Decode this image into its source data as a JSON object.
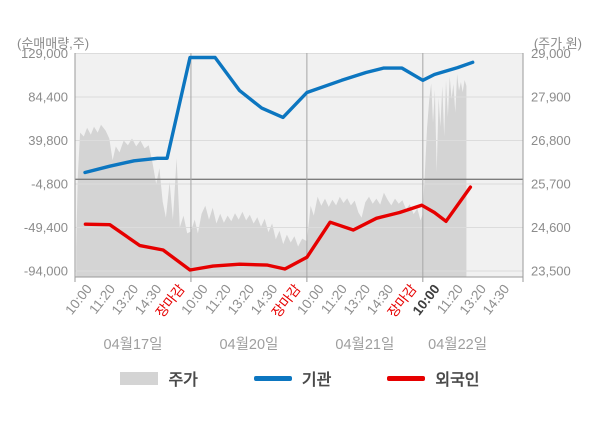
{
  "chart_data": {
    "type": "combo",
    "title": "",
    "left_axis": {
      "label": "(순매매량,주)",
      "ticks": [
        129000,
        84400,
        39800,
        -4800,
        -49400,
        -94000
      ],
      "range": [
        129000,
        -94000
      ],
      "zero_line": true
    },
    "right_axis": {
      "label": "(주가,원)",
      "ticks": [
        29000,
        27900,
        26800,
        25700,
        24600,
        23500
      ],
      "range": [
        29000,
        23500
      ]
    },
    "x_axis": {
      "days": [
        {
          "date": "04월17일",
          "times": [
            "10:00",
            "11:20",
            "13:20",
            "14:30",
            "장마감"
          ]
        },
        {
          "date": "04월20일",
          "times": [
            "10:00",
            "11:20",
            "13:20",
            "14:30",
            "장마감"
          ]
        },
        {
          "date": "04월21일",
          "times": [
            "10:00",
            "11:20",
            "13:20",
            "14:30",
            "장마감"
          ]
        },
        {
          "date": "04월22일",
          "times": [
            "10:00",
            "11:20",
            "13:20",
            "14:30"
          ]
        }
      ],
      "close_label": "장마감",
      "close_label_color": "#e60000",
      "emphasized_tick": {
        "day_index": 3,
        "time_index": 0,
        "color": "#3d3d3d"
      },
      "tick_label_color": "#8f8f8f",
      "date_label_color": "#9e9e9e",
      "grid_between_days": true
    },
    "series": [
      {
        "name": "주가",
        "type": "area",
        "axis": "right",
        "color": "#d4d4d4",
        "points": [
          [
            0.05,
            24100
          ],
          [
            0.12,
            25900
          ],
          [
            0.22,
            27000
          ],
          [
            0.38,
            26900
          ],
          [
            0.52,
            27120
          ],
          [
            0.68,
            26950
          ],
          [
            0.82,
            27150
          ],
          [
            0.98,
            27000
          ],
          [
            1.12,
            27200
          ],
          [
            1.32,
            27050
          ],
          [
            1.48,
            26850
          ],
          [
            1.62,
            26300
          ],
          [
            1.76,
            26650
          ],
          [
            1.92,
            26500
          ],
          [
            2.1,
            26800
          ],
          [
            2.28,
            26680
          ],
          [
            2.46,
            26850
          ],
          [
            2.64,
            26650
          ],
          [
            2.82,
            26800
          ],
          [
            3.0,
            26600
          ],
          [
            3.18,
            26680
          ],
          [
            3.34,
            26250
          ],
          [
            3.5,
            25700
          ],
          [
            3.64,
            26100
          ],
          [
            3.78,
            25250
          ],
          [
            3.92,
            24850
          ],
          [
            4.08,
            25750
          ],
          [
            4.22,
            24800
          ],
          [
            4.38,
            26350
          ],
          [
            4.52,
            24600
          ],
          [
            4.68,
            24900
          ],
          [
            4.84,
            24450
          ],
          [
            5.0,
            24500
          ],
          [
            5.16,
            24800
          ],
          [
            5.3,
            24450
          ],
          [
            5.46,
            24950
          ],
          [
            5.62,
            25150
          ],
          [
            5.78,
            24800
          ],
          [
            5.94,
            25100
          ],
          [
            6.1,
            24700
          ],
          [
            6.26,
            24950
          ],
          [
            6.42,
            24720
          ],
          [
            6.58,
            24900
          ],
          [
            6.74,
            24760
          ],
          [
            6.9,
            24960
          ],
          [
            7.06,
            24800
          ],
          [
            7.22,
            25000
          ],
          [
            7.38,
            24780
          ],
          [
            7.54,
            24920
          ],
          [
            7.7,
            24700
          ],
          [
            7.86,
            24860
          ],
          [
            8.02,
            24620
          ],
          [
            8.18,
            24820
          ],
          [
            8.34,
            24480
          ],
          [
            8.5,
            24700
          ],
          [
            8.66,
            24300
          ],
          [
            8.82,
            24520
          ],
          [
            8.98,
            24180
          ],
          [
            9.14,
            24420
          ],
          [
            9.3,
            24220
          ],
          [
            9.46,
            24380
          ],
          [
            9.62,
            24120
          ],
          [
            9.8,
            24320
          ],
          [
            10.0,
            24250
          ],
          [
            10.16,
            25150
          ],
          [
            10.3,
            24900
          ],
          [
            10.46,
            25380
          ],
          [
            10.62,
            25150
          ],
          [
            10.78,
            25330
          ],
          [
            10.94,
            25120
          ],
          [
            11.1,
            25300
          ],
          [
            11.26,
            25160
          ],
          [
            11.42,
            25380
          ],
          [
            11.58,
            25220
          ],
          [
            11.74,
            25340
          ],
          [
            11.9,
            25160
          ],
          [
            12.06,
            25280
          ],
          [
            12.22,
            24980
          ],
          [
            12.36,
            24850
          ],
          [
            12.52,
            25240
          ],
          [
            12.68,
            25380
          ],
          [
            12.84,
            25200
          ],
          [
            13.0,
            25330
          ],
          [
            13.16,
            25180
          ],
          [
            13.32,
            25480
          ],
          [
            13.48,
            25300
          ],
          [
            13.64,
            25160
          ],
          [
            13.8,
            25330
          ],
          [
            13.96,
            25200
          ],
          [
            14.12,
            25290
          ],
          [
            14.28,
            25060
          ],
          [
            14.44,
            25190
          ],
          [
            14.6,
            24940
          ],
          [
            14.76,
            25080
          ],
          [
            14.9,
            24780
          ],
          [
            15.0,
            24950
          ],
          [
            15.08,
            25900
          ],
          [
            15.18,
            27100
          ],
          [
            15.28,
            27850
          ],
          [
            15.36,
            28250
          ],
          [
            15.44,
            27250
          ],
          [
            15.52,
            28080
          ],
          [
            15.6,
            26000
          ],
          [
            15.68,
            27880
          ],
          [
            15.76,
            27150
          ],
          [
            15.84,
            28180
          ],
          [
            15.92,
            26900
          ],
          [
            16.0,
            28320
          ],
          [
            16.08,
            27400
          ],
          [
            16.16,
            28420
          ],
          [
            16.24,
            27850
          ],
          [
            16.32,
            28230
          ],
          [
            16.4,
            27500
          ],
          [
            16.48,
            28480
          ],
          [
            16.56,
            28060
          ],
          [
            16.64,
            28280
          ],
          [
            16.72,
            28020
          ],
          [
            16.8,
            28330
          ],
          [
            16.88,
            28180
          ]
        ]
      },
      {
        "name": "기관",
        "type": "line",
        "axis": "left",
        "color": "#0c76c0",
        "points": [
          [
            0.43,
            7000
          ],
          [
            1.5,
            13500
          ],
          [
            2.55,
            19000
          ],
          [
            3.55,
            21500
          ],
          [
            3.97,
            21500
          ],
          [
            4.96,
            124900
          ],
          [
            6.04,
            124900
          ],
          [
            7.1,
            91000
          ],
          [
            8.05,
            73000
          ],
          [
            8.97,
            63500
          ],
          [
            10.0,
            89000
          ],
          [
            11.5,
            101500
          ],
          [
            12.55,
            109500
          ],
          [
            13.3,
            114000
          ],
          [
            14.1,
            114000
          ],
          [
            15.0,
            101500
          ],
          [
            15.5,
            107500
          ],
          [
            16.5,
            114500
          ],
          [
            17.15,
            120000
          ]
        ]
      },
      {
        "name": "외국인",
        "type": "line",
        "axis": "left",
        "color": "#e60000",
        "points": [
          [
            0.45,
            -46000
          ],
          [
            1.5,
            -46500
          ],
          [
            2.8,
            -68000
          ],
          [
            3.8,
            -72500
          ],
          [
            4.96,
            -93000
          ],
          [
            5.95,
            -89000
          ],
          [
            7.1,
            -87000
          ],
          [
            8.3,
            -88000
          ],
          [
            9.05,
            -92000
          ],
          [
            10.0,
            -80000
          ],
          [
            11.0,
            -44000
          ],
          [
            12.0,
            -52000
          ],
          [
            13.0,
            -40000
          ],
          [
            14.0,
            -34000
          ],
          [
            14.95,
            -26500
          ],
          [
            15.5,
            -34000
          ],
          [
            16.0,
            -43000
          ],
          [
            17.05,
            -8000
          ]
        ]
      }
    ],
    "layout_hints": {
      "slots_per_day": 5,
      "plot_background": "#f1f1f1",
      "h_gridline_color": "#dcdcdc",
      "v_gridline_color": "#a6a6a6",
      "zero_line_color": "#7d7d7d",
      "axis_line_color": "#9a9a9a",
      "y_tick_label_color": "#8c8c8c",
      "legend_position": "bottom"
    }
  },
  "legend": {
    "price_label": "주가",
    "institution_label": "기관",
    "foreigner_label": "외국인"
  }
}
